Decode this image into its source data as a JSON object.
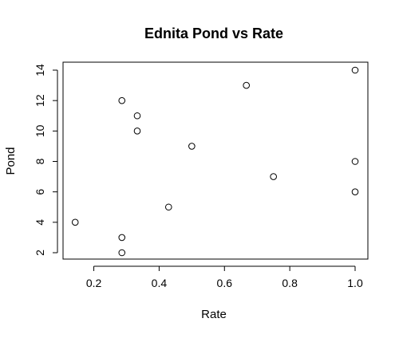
{
  "chart_data": {
    "type": "scatter",
    "title": "Ednita Pond vs Rate",
    "xlabel": "Rate",
    "ylabel": "Pond",
    "xlim": [
      0.14,
      1.0
    ],
    "ylim": [
      2,
      14
    ],
    "xticks": [
      0.2,
      0.4,
      0.6,
      0.8,
      1.0
    ],
    "xtick_labels": [
      "0.2",
      "0.4",
      "0.6",
      "0.8",
      "1.0"
    ],
    "yticks": [
      2,
      4,
      6,
      8,
      10,
      12,
      14
    ],
    "ytick_labels": [
      "2",
      "4",
      "6",
      "8",
      "10",
      "12",
      "14"
    ],
    "grid": false,
    "marker": "open-circle",
    "points": [
      {
        "x": 0.143,
        "y": 4
      },
      {
        "x": 0.286,
        "y": 2
      },
      {
        "x": 0.286,
        "y": 3
      },
      {
        "x": 0.286,
        "y": 12
      },
      {
        "x": 0.333,
        "y": 11
      },
      {
        "x": 0.333,
        "y": 10
      },
      {
        "x": 0.429,
        "y": 5
      },
      {
        "x": 0.5,
        "y": 9
      },
      {
        "x": 0.667,
        "y": 13
      },
      {
        "x": 0.75,
        "y": 7
      },
      {
        "x": 1.0,
        "y": 14
      },
      {
        "x": 1.0,
        "y": 8
      },
      {
        "x": 1.0,
        "y": 6
      }
    ]
  }
}
